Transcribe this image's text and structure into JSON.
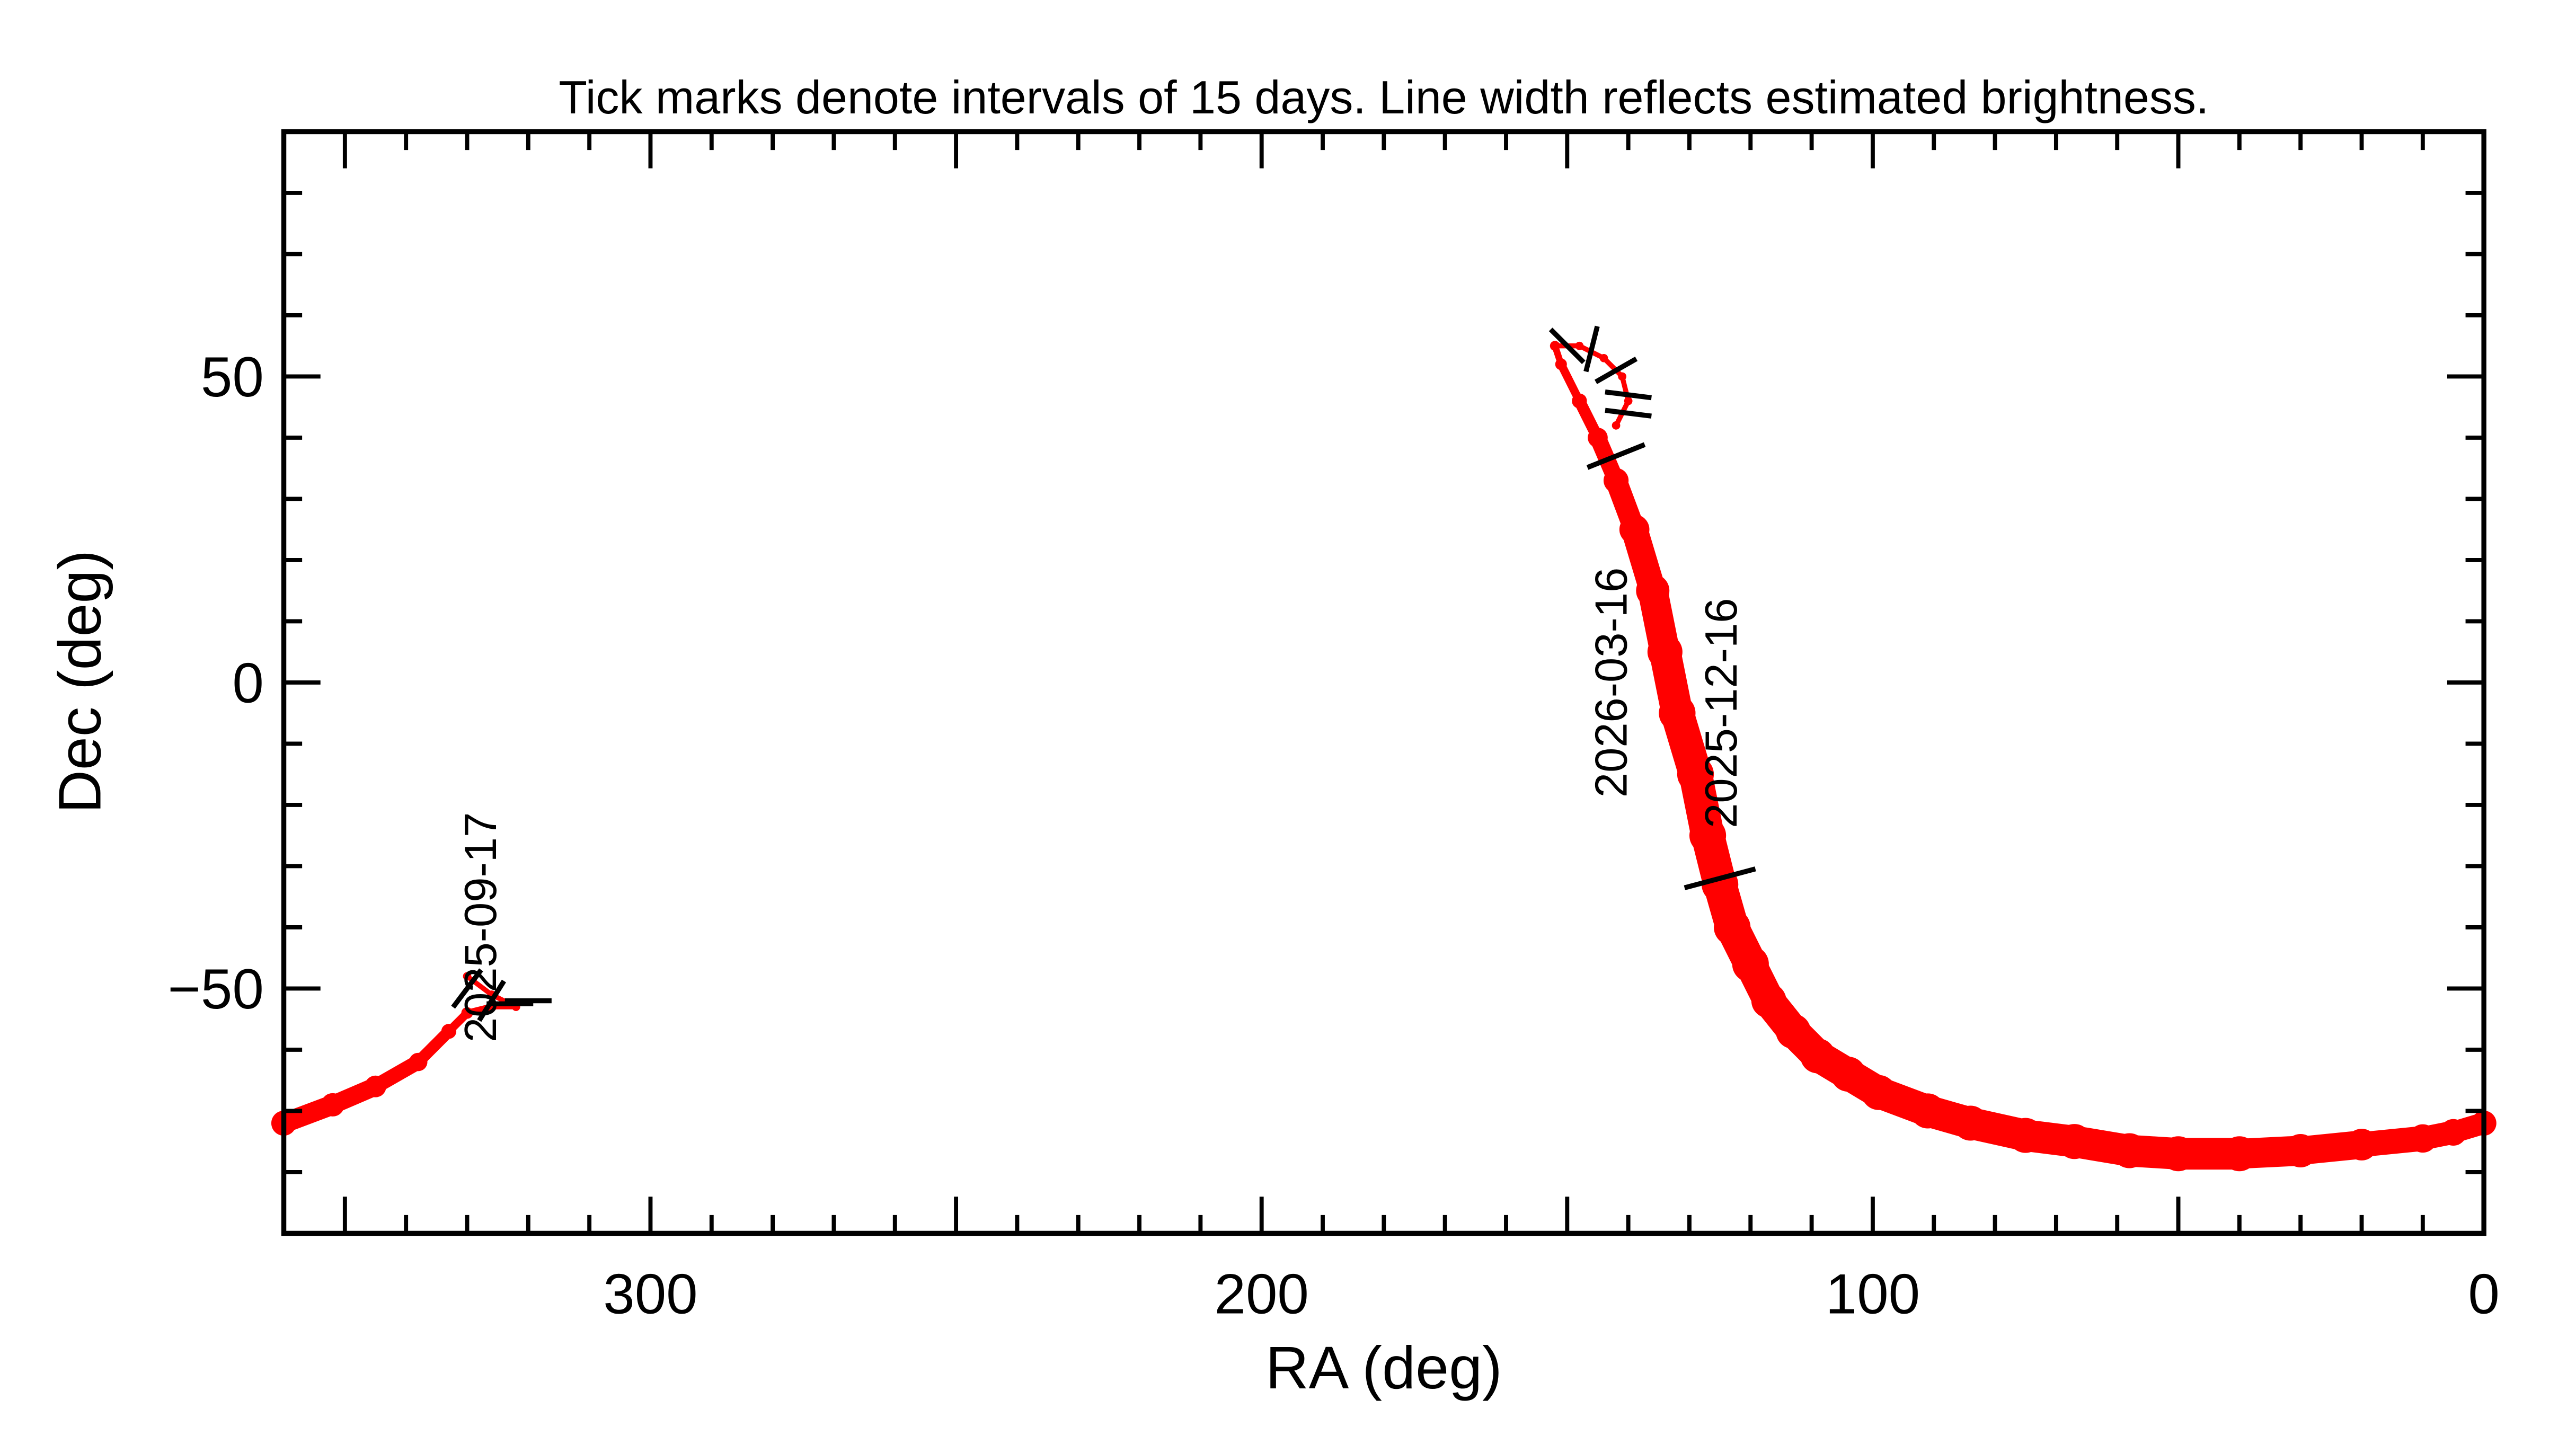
{
  "chart_data": {
    "type": "line",
    "title": "Tick marks denote intervals of 15 days.  Line width reflects estimated brightness.",
    "xlabel": "RA (deg)",
    "ylabel": "Dec (deg)",
    "xlim": [
      360,
      0
    ],
    "ylim": [
      -90,
      90
    ],
    "x_ticks": [
      300,
      200,
      100,
      0
    ],
    "y_ticks": [
      50,
      0,
      -50
    ],
    "x_tick_labels": [
      "300",
      "200",
      "100",
      "0"
    ],
    "y_tick_labels": [
      "50",
      "0",
      "−50"
    ],
    "grid": false,
    "line_color": "#ff0000",
    "tick_mark_color": "#000000",
    "series": [
      {
        "points": [
          [
            330,
            -48,
            3
          ],
          [
            326,
            -51,
            3
          ],
          [
            322,
            -53,
            3
          ],
          [
            326,
            -53,
            4
          ],
          [
            330,
            -54,
            5
          ],
          [
            333,
            -57,
            7
          ],
          [
            338,
            -62,
            9
          ],
          [
            345,
            -66,
            11
          ],
          [
            352,
            -69,
            12
          ],
          [
            360,
            -72,
            13
          ]
        ]
      },
      {
        "points": [
          [
            0,
            -72,
            13
          ],
          [
            5,
            -73.5,
            14
          ],
          [
            10,
            -74.5,
            15
          ],
          [
            20,
            -75.5,
            17
          ],
          [
            30,
            -76.5,
            18
          ],
          [
            40,
            -77,
            19
          ],
          [
            50,
            -77,
            19
          ],
          [
            58,
            -76.5,
            19
          ],
          [
            67,
            -75,
            19
          ],
          [
            75,
            -74,
            19
          ],
          [
            84,
            -72,
            19
          ],
          [
            91,
            -70,
            19
          ],
          [
            99,
            -67,
            19
          ],
          [
            104,
            -64,
            19
          ],
          [
            109,
            -61,
            19
          ],
          [
            113,
            -57,
            19
          ],
          [
            117,
            -52,
            19
          ],
          [
            120,
            -46,
            20
          ],
          [
            123,
            -40,
            20
          ],
          [
            125,
            -33,
            20
          ],
          [
            127,
            -25,
            20
          ],
          [
            129,
            -15,
            20
          ],
          [
            132,
            -5,
            20
          ],
          [
            134,
            5,
            19
          ],
          [
            136,
            15,
            18
          ],
          [
            139,
            25,
            16
          ],
          [
            142,
            33,
            13
          ],
          [
            145,
            40,
            10
          ],
          [
            148,
            46,
            7
          ],
          [
            151,
            52,
            5
          ],
          [
            152,
            55,
            4
          ],
          [
            148,
            55,
            3
          ],
          [
            144,
            53,
            3
          ],
          [
            141,
            50,
            3
          ],
          [
            140,
            46,
            3
          ],
          [
            142,
            42,
            3
          ]
        ]
      }
    ],
    "tick_marks": [
      [
        330,
        -50
      ],
      [
        326,
        -52
      ],
      [
        323,
        -52.5
      ],
      [
        320,
        -52
      ],
      [
        150,
        55
      ],
      [
        146,
        54.5
      ],
      [
        142,
        51
      ],
      [
        140,
        47
      ],
      [
        140,
        44
      ],
      [
        142,
        37
      ],
      [
        125,
        -32
      ]
    ],
    "date_labels": [
      {
        "text": "2025-09-17",
        "ra": 328,
        "dec": -40
      },
      {
        "text": "2026-03-16",
        "ra": 143,
        "dec": 0
      },
      {
        "text": "2025-12-16",
        "ra": 125,
        "dec": -5
      }
    ]
  }
}
